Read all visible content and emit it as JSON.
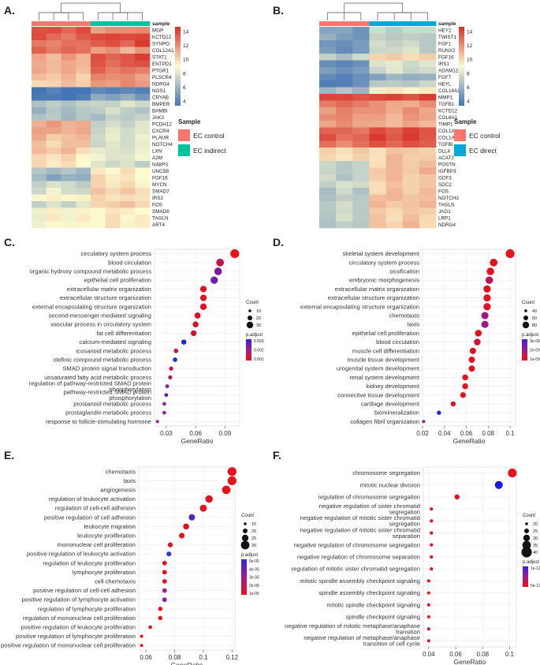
{
  "heatmaps": {
    "A": {
      "letter": "A.",
      "sample_header": "sample",
      "legend_title": "Sample",
      "groups": [
        "EC control",
        "EC indirect"
      ],
      "group_colors": [
        "#f8766d",
        "#00c49a"
      ],
      "n_control": 4,
      "n_treat": 4,
      "colorbar_ticks": [
        "14",
        "12",
        "10",
        "8",
        "6",
        "4"
      ],
      "genes": [
        "MGP",
        "KCTD12",
        "SYNPO",
        "COL12A1",
        "STAT1",
        "ENTPD1",
        "PTGR1",
        "PLSCR4",
        "NDRG4",
        "NOS1",
        "CRYAB",
        "BMPER",
        "BAMBI",
        "JAK3",
        "PCDH12",
        "CXCR4",
        "PLAUR",
        "NOTCH4",
        "LXN",
        "A2M",
        "N4BP3",
        "UNC5B",
        "FGF16",
        "MYCN",
        "SMAD7",
        "IRS2",
        "FOS",
        "SMAD6",
        "TAGLN",
        "ART4"
      ],
      "control_levels": [
        0.9,
        0.8,
        0.7,
        0.75,
        0.45,
        0.4,
        0.4,
        0.35,
        0.3,
        -0.9,
        -0.9,
        -0.35,
        -0.4,
        -0.35,
        0.45,
        0.45,
        0.35,
        0.3,
        0.3,
        0.2,
        0.15,
        -0.4,
        -0.5,
        -0.2,
        -0.1,
        0.1,
        -0.2,
        0.1,
        0.05,
        0.05
      ],
      "treat_levels": [
        0.6,
        0.95,
        0.9,
        0.5,
        0.9,
        0.85,
        0.7,
        0.6,
        0.55,
        -0.85,
        -0.6,
        -0.2,
        -0.25,
        -0.3,
        -0.2,
        -0.15,
        -0.1,
        -0.15,
        -0.1,
        -0.1,
        -0.2,
        0.1,
        0.15,
        0.2,
        0.25,
        0.2,
        0.25,
        0.15,
        0.1,
        0.1
      ]
    },
    "B": {
      "letter": "B.",
      "sample_header": "sample",
      "legend_title": "Sample",
      "groups": [
        "EC control",
        "EC direct"
      ],
      "group_colors": [
        "#f8766d",
        "#00a9d6"
      ],
      "n_control": 3,
      "n_treat": 4,
      "colorbar_ticks": [
        "14",
        "12",
        "10",
        "8",
        "6",
        "4"
      ],
      "genes": [
        "HEY2",
        "TWIST1",
        "FGF1",
        "RUNX2",
        "FGF16",
        "IRS1",
        "ADAM12",
        "FGF7",
        "HEYL",
        "COL14A1",
        "MMP1",
        "TGFB1",
        "KCTD12",
        "COL6A1",
        "TIMP1",
        "COL1A1",
        "COL1A2",
        "TGFBI",
        "DLL4",
        "ACAT2",
        "POSTN",
        "IGFBP3",
        "GDF3",
        "SDC2",
        "FOS",
        "NOTCH3",
        "TAGLN",
        "JAG1",
        "LRP1",
        "NDRG4"
      ],
      "control_levels": [
        -0.6,
        -0.6,
        -0.7,
        -0.7,
        -0.3,
        -0.8,
        -0.7,
        -0.8,
        -0.8,
        -0.4,
        0.95,
        0.7,
        0.6,
        0.6,
        0.5,
        0.75,
        0.8,
        0.7,
        0.2,
        0.2,
        -0.3,
        -0.3,
        -0.25,
        -0.2,
        -0.3,
        -0.3,
        -0.25,
        -0.2,
        -0.25,
        -0.3
      ],
      "treat_levels": [
        -0.2,
        -0.3,
        -0.2,
        -0.2,
        0.3,
        -0.1,
        -0.2,
        -0.5,
        -0.3,
        0.1,
        0.9,
        0.5,
        0.5,
        0.5,
        0.45,
        0.9,
        0.95,
        0.85,
        0.3,
        0.3,
        0.3,
        0.35,
        0.3,
        0.3,
        0.3,
        0.35,
        0.3,
        0.3,
        0.25,
        0.3
      ]
    }
  },
  "chart_data": [
    {
      "panel": "C.",
      "type": "scatter",
      "xlabel": "GeneRatio",
      "xlim": [
        0.018,
        0.105
      ],
      "xticks": [
        0.03,
        0.06,
        0.09
      ],
      "count_legend_title": "Count",
      "count_legend_labels": [
        "10",
        "20",
        "30"
      ],
      "color_legend_title": "p.adjust",
      "color_legend_labels": [
        "0.003",
        "0.002",
        "0.001"
      ],
      "terms": [
        "circulatory system process",
        "blood circulation",
        "organic hydroxy compound metabolic process",
        "epithelial cell proliferation",
        "extracellular matrix organization",
        "extracellular structure organization",
        "external encapsulating structure organization",
        "second-messenger-mediated signaling",
        "vascular process in circulatory system",
        "fat cell differentiation",
        "calcium-mediated signaling",
        "icosanoid metabolic process",
        "olefinic compound metabolic process",
        "SMAD protein signal transduction",
        "unsaturated fatty acid metabolic process",
        "regulation of pathway-restricted SMAD protein phosphorylation",
        "pathway-restricted SMAD protein phosphorylation",
        "prostanoid metabolic process",
        "prostaglandin metabolic process",
        "response to follicle-stimulating hormone"
      ],
      "x": [
        0.1,
        0.085,
        0.083,
        0.079,
        0.068,
        0.068,
        0.068,
        0.062,
        0.06,
        0.058,
        0.048,
        0.04,
        0.039,
        0.035,
        0.034,
        0.031,
        0.03,
        0.028,
        0.028,
        0.021
      ],
      "colors": [
        "#e8121a",
        "#c01352",
        "#7a1a9e",
        "#6a1fb0",
        "#dd1424",
        "#dd1424",
        "#dd1424",
        "#d41230",
        "#d81428",
        "#d01335",
        "#2020d8",
        "#d0153a",
        "#2030d0",
        "#d21338",
        "#b01860",
        "#8a22a6",
        "#6420b8",
        "#8a22a6",
        "#8a22a6",
        "#9a2090"
      ]
    },
    {
      "panel": "D.",
      "type": "scatter",
      "xlabel": "GeneRatio",
      "xlim": [
        0.02,
        0.105
      ],
      "xticks": [
        0.02,
        0.04,
        0.06,
        0.08,
        0.1
      ],
      "count_legend_title": "Count",
      "count_legend_labels": [
        "40",
        "60",
        "80"
      ],
      "color_legend_title": "p.adjust",
      "color_legend_labels": [
        "3e-09",
        "2e-09",
        "1e-09"
      ],
      "terms": [
        "skeletal system development",
        "circulatory system process",
        "ossification",
        "embryonic morphogenesis",
        "extracellular matrix organization",
        "extracellular structure organization",
        "external encapsulating structure organization",
        "chemotaxis",
        "taxis",
        "epithelial cell proliferation",
        "blood circulation",
        "muscle cell differentiation",
        "muscle tissue development",
        "urogenital system development",
        "renal system development",
        "kidney development",
        "connective tissue development",
        "cartilage development",
        "biomineralization",
        "collagen fibril organization"
      ],
      "x": [
        0.1,
        0.085,
        0.082,
        0.081,
        0.079,
        0.079,
        0.079,
        0.077,
        0.077,
        0.071,
        0.07,
        0.066,
        0.065,
        0.065,
        0.059,
        0.059,
        0.057,
        0.048,
        0.035,
        0.021
      ],
      "colors": [
        "#e8121a",
        "#e01420",
        "#e01420",
        "#c01350",
        "#e01420",
        "#e01420",
        "#e01420",
        "#a0187c",
        "#a0187c",
        "#e01420",
        "#d0153a",
        "#e01420",
        "#e01420",
        "#e01420",
        "#e01420",
        "#e01420",
        "#e01420",
        "#dd1424",
        "#2020d8",
        "#9a2090"
      ]
    },
    {
      "panel": "E.",
      "type": "scatter",
      "xlabel": "GeneRatio",
      "xlim": [
        0.055,
        0.122
      ],
      "xticks": [
        0.06,
        0.08,
        0.1,
        0.12
      ],
      "count_legend_title": "Count",
      "count_legend_labels": [
        "15",
        "20",
        "25",
        "30"
      ],
      "color_legend_title": "p.adjust",
      "color_legend_labels": [
        "5e-05",
        "4e-05",
        "3e-05",
        "2e-05",
        "1e-05"
      ],
      "terms": [
        "chemotaxis",
        "taxis",
        "angiogenesis",
        "regulation of leukocyte activation",
        "regulation of cell-cell adhesion",
        "positive regulation of cell adhesion",
        "leukocyte migration",
        "leukocyte proliferation",
        "mononuclear cell proliferation",
        "positive regulation of leukocyte activation",
        "regulation of leukocyte proliferation",
        "lymphocyte proliferation",
        "cell chemotaxis",
        "positive regulation of cell-cell adhesion",
        "positive regulation of lymphocyte activation",
        "regulation of lymphocyte proliferation",
        "regulation of mononuclear cell proliferation",
        "positive regulation of leukocyte proliferation",
        "positive regulation of lymphocyte proliferation",
        "positive regulation of mononuclear cell proliferation"
      ],
      "x": [
        0.12,
        0.12,
        0.116,
        0.104,
        0.1,
        0.092,
        0.088,
        0.085,
        0.077,
        0.076,
        0.073,
        0.073,
        0.073,
        0.073,
        0.073,
        0.07,
        0.07,
        0.063,
        0.057,
        0.057
      ],
      "colors": [
        "#e8121a",
        "#e8121a",
        "#e8121a",
        "#e01420",
        "#e01420",
        "#5a22c0",
        "#e01420",
        "#e01420",
        "#e01420",
        "#2c3ad6",
        "#e01420",
        "#e01420",
        "#e01420",
        "#9a2090",
        "#8a22a6",
        "#e01420",
        "#e01420",
        "#e01420",
        "#e01420",
        "#e01420"
      ]
    },
    {
      "panel": "F.",
      "type": "scatter",
      "xlabel": "GeneRatio",
      "xlim": [
        0.036,
        0.105
      ],
      "xticks": [
        0.04,
        0.06,
        0.08,
        0.1
      ],
      "count_legend_title": "Count",
      "count_legend_labels": [
        "20",
        "25",
        "30",
        "35",
        "40"
      ],
      "color_legend_title": "p.adjust",
      "color_legend_labels": [
        "1e-11",
        "5e-12"
      ],
      "terms": [
        "chromosome segregation",
        "mitotic nuclear division",
        "regulation of chromosome segregation",
        "negative regulation of sister chromatid segregation",
        "negative regulation of mitotic sister chromatid segregation",
        "negative regulation of mitotic sister chromatid separation",
        "negative regulation of chromosome segregation",
        "negative regulation of chromosome separation",
        "regulation of mitotic sister chromatid segregation",
        "mitotic spindle assembly checkpoint signaling",
        "spindle assembly checkpoint signaling",
        "mitotic spindle checkpoint signaling",
        "spindle checkpoint signaling",
        "negative regulation of mitotic metaphase/anaphase transition",
        "negative regulation of metaphase/anaphase transition of cell cycle"
      ],
      "x": [
        0.102,
        0.092,
        0.061,
        0.042,
        0.042,
        0.042,
        0.042,
        0.042,
        0.042,
        0.04,
        0.04,
        0.04,
        0.04,
        0.04,
        0.04
      ],
      "colors": [
        "#e8121a",
        "#1a1ae0",
        "#e01420",
        "#e01420",
        "#e01420",
        "#e01420",
        "#e01420",
        "#e01420",
        "#e01420",
        "#e01420",
        "#e01420",
        "#e01420",
        "#e01420",
        "#b01860",
        "#b01860"
      ]
    }
  ]
}
